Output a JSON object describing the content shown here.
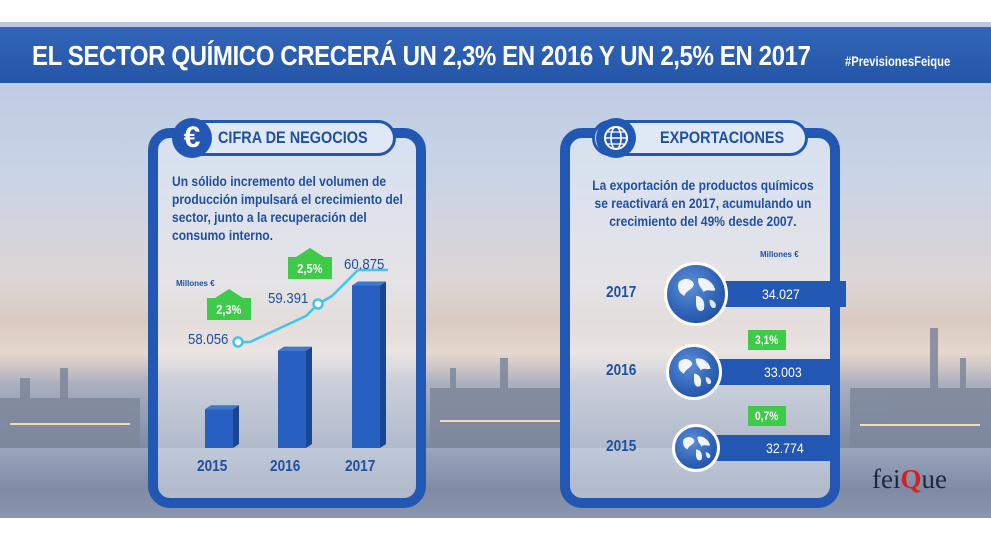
{
  "header": {
    "title": "EL SECTOR QUÍMICO CRECERÁ UN 2,3% EN 2016 Y UN 2,5% EN 2017",
    "hashtag": "#PrevisionesFeique"
  },
  "left_panel": {
    "heading": "CIFRA DE NEGOCIOS",
    "icon_symbol": "€",
    "description": "Un sólido incremento del volumen de producción impulsará el crecimiento del sector, junto a la recuperación del consumo interno.",
    "unit_label": "Millones €"
  },
  "right_panel": {
    "heading": "EXPORTACIONES",
    "description": "La exportación de productos químicos se reactivará en 2017, acumulando un crecimiento del 49% desde 2007.",
    "unit_label": "Millones €"
  },
  "chart_data": [
    {
      "type": "bar",
      "categories": [
        "2015",
        "2016",
        "2017"
      ],
      "values": [
        58056,
        59391,
        60875
      ],
      "value_labels": [
        "58.056",
        "59.391",
        "60.875"
      ],
      "growth_labels": [
        "2,3%",
        "2,5%"
      ],
      "ylabel": "Millones €"
    },
    {
      "type": "bar",
      "orientation": "horizontal",
      "categories": [
        "2017",
        "2016",
        "2015"
      ],
      "values": [
        34027,
        33003,
        32774
      ],
      "value_labels": [
        "34.027",
        "33.003",
        "32.774"
      ],
      "growth_labels": [
        "3,1%",
        "0,7%"
      ],
      "ylabel": "Millones €"
    }
  ],
  "logo": {
    "prefix": "fei",
    "q": "Q",
    "suffix": "ue"
  },
  "colors": {
    "primary": "#2258b3",
    "accent": "#3fcb4a",
    "line": "#41c6e8"
  },
  "icons": {
    "left": "euro-icon",
    "right": "globe-icon"
  }
}
